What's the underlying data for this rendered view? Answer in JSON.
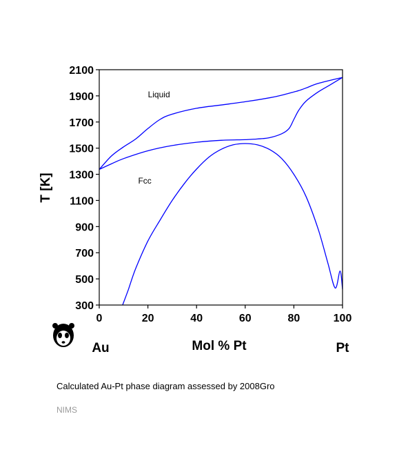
{
  "chart_data": {
    "type": "line",
    "title": "",
    "xlabel": "Mol % Pt",
    "ylabel": "T [K]",
    "xlim": [
      0,
      100
    ],
    "ylim": [
      300,
      2100
    ],
    "xticks": [
      0,
      20,
      40,
      60,
      80,
      100
    ],
    "yticks": [
      300,
      500,
      700,
      900,
      1100,
      1300,
      1500,
      1700,
      1900,
      2100
    ],
    "x_end_labels": {
      "left": "Au",
      "right": "Pt"
    },
    "region_labels": [
      {
        "text": "Liquid",
        "x": 20,
        "y": 1890
      },
      {
        "text": "Fcc",
        "x": 16,
        "y": 1230
      }
    ],
    "grid": false,
    "legend": "none",
    "line_color": "#0000ff",
    "series": [
      {
        "x": [
          0,
          5,
          10,
          15,
          20,
          25,
          30,
          40,
          50,
          60,
          70,
          75,
          80,
          82,
          85,
          90,
          100
        ],
        "y": [
          1337,
          1440,
          1510,
          1570,
          1650,
          1720,
          1760,
          1805,
          1830,
          1855,
          1885,
          1905,
          1930,
          1940,
          1960,
          1995,
          2041
        ]
      },
      {
        "x": [
          0,
          5,
          10,
          20,
          30,
          40,
          50,
          60,
          65,
          70,
          75,
          78,
          80,
          82,
          85,
          90,
          95,
          100
        ],
        "y": [
          1337,
          1380,
          1420,
          1480,
          1520,
          1545,
          1560,
          1565,
          1570,
          1580,
          1610,
          1650,
          1720,
          1790,
          1860,
          1930,
          1985,
          2041
        ]
      },
      {
        "x": [
          9.6,
          12,
          15,
          20,
          25,
          30,
          35,
          40,
          45,
          50,
          55,
          60,
          65,
          70,
          75,
          80,
          85,
          90,
          94,
          97,
          99,
          100
        ],
        "y": [
          300,
          420,
          580,
          790,
          950,
          1100,
          1230,
          1340,
          1430,
          1490,
          1525,
          1535,
          1525,
          1490,
          1420,
          1300,
          1130,
          880,
          620,
          430,
          560,
          420
        ]
      }
    ]
  },
  "caption": "Calculated Au-Pt phase diagram assessed by 2008Gro",
  "source": "NIMS",
  "logo": {
    "icon": "panda-icon"
  }
}
